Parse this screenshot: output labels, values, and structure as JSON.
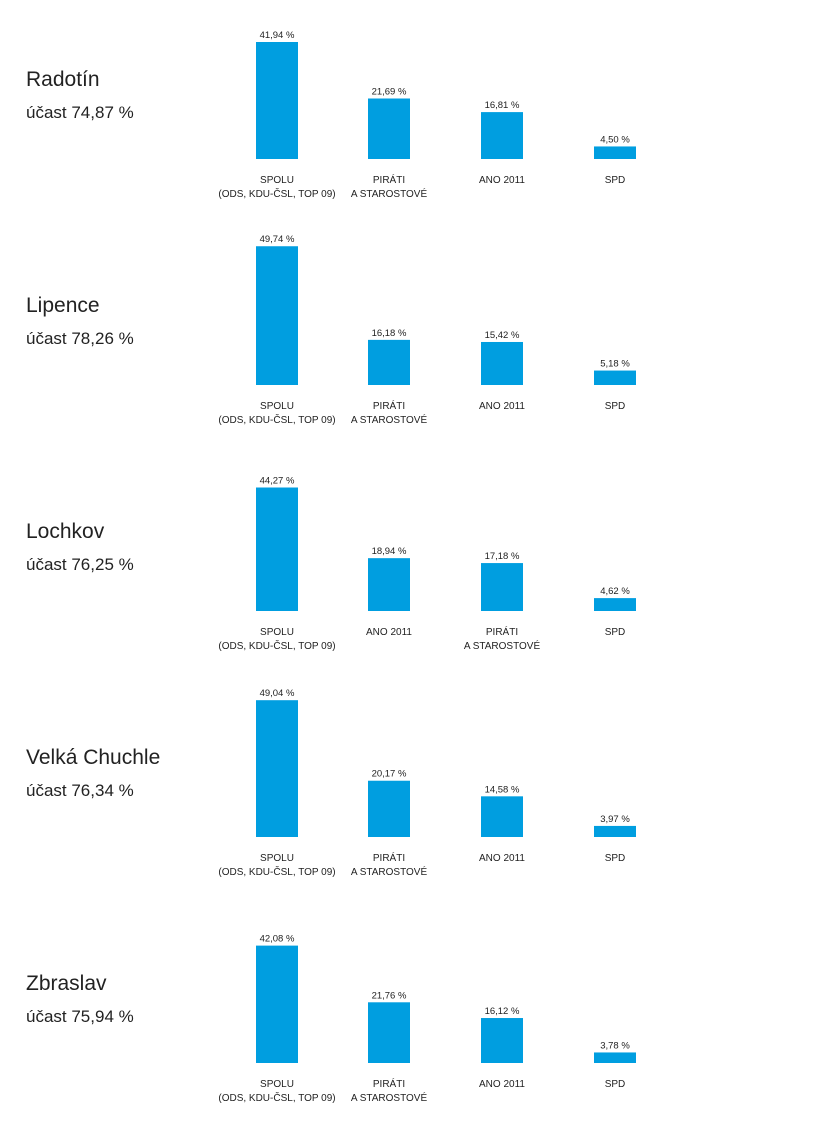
{
  "chart_data": [
    {
      "type": "bar",
      "title": "Radotín",
      "subtitle": "účast 74,87 %",
      "categories": [
        [
          "SPOLU",
          "(ODS, KDU-ČSL, TOP 09)"
        ],
        [
          "PIRÁTI",
          "A STAROSTOVÉ"
        ],
        [
          "ANO 2011"
        ],
        [
          "SPD"
        ]
      ],
      "values": [
        41.94,
        21.69,
        16.81,
        4.5
      ],
      "value_labels": [
        "41,94 %",
        "21,69 %",
        "16,81 %",
        "4,50 %"
      ],
      "ylim": [
        0,
        50
      ]
    },
    {
      "type": "bar",
      "title": "Lipence",
      "subtitle": "účast 78,26 %",
      "categories": [
        [
          "SPOLU",
          "(ODS, KDU-ČSL, TOP 09)"
        ],
        [
          "PIRÁTI",
          "A STAROSTOVÉ"
        ],
        [
          "ANO 2011"
        ],
        [
          "SPD"
        ]
      ],
      "values": [
        49.74,
        16.18,
        15.42,
        5.18
      ],
      "value_labels": [
        "49,74 %",
        "16,18 %",
        "15,42 %",
        "5,18 %"
      ],
      "ylim": [
        0,
        50
      ]
    },
    {
      "type": "bar",
      "title": "Lochkov",
      "subtitle": "účast 76,25 %",
      "categories": [
        [
          "SPOLU",
          "(ODS, KDU-ČSL, TOP 09)"
        ],
        [
          "ANO 2011"
        ],
        [
          "PIRÁTI",
          "A STAROSTOVÉ"
        ],
        [
          "SPD"
        ]
      ],
      "values": [
        44.27,
        18.94,
        17.18,
        4.62
      ],
      "value_labels": [
        "44,27 %",
        "18,94 %",
        "17,18 %",
        "4,62 %"
      ],
      "ylim": [
        0,
        50
      ]
    },
    {
      "type": "bar",
      "title": "Velká Chuchle",
      "subtitle": "účast 76,34 %",
      "categories": [
        [
          "SPOLU",
          "(ODS, KDU-ČSL, TOP 09)"
        ],
        [
          "PIRÁTI",
          "A STAROSTOVÉ"
        ],
        [
          "ANO 2011"
        ],
        [
          "SPD"
        ]
      ],
      "values": [
        49.04,
        20.17,
        14.58,
        3.97
      ],
      "value_labels": [
        "49,04 %",
        "20,17 %",
        "14,58 %",
        "3,97 %"
      ],
      "ylim": [
        0,
        50
      ]
    },
    {
      "type": "bar",
      "title": "Zbraslav",
      "subtitle": "účast 75,94 %",
      "categories": [
        [
          "SPOLU",
          "(ODS, KDU-ČSL, TOP 09)"
        ],
        [
          "PIRÁTI",
          "A STAROSTOVÉ"
        ],
        [
          "ANO 2011"
        ],
        [
          "SPD"
        ]
      ],
      "values": [
        42.08,
        21.76,
        16.12,
        3.78
      ],
      "value_labels": [
        "42,08 %",
        "21,76 %",
        "16,12 %",
        "3,78 %"
      ],
      "ylim": [
        0,
        50
      ]
    }
  ],
  "colors": {
    "bar": "#009ee0",
    "text": "#222222"
  }
}
